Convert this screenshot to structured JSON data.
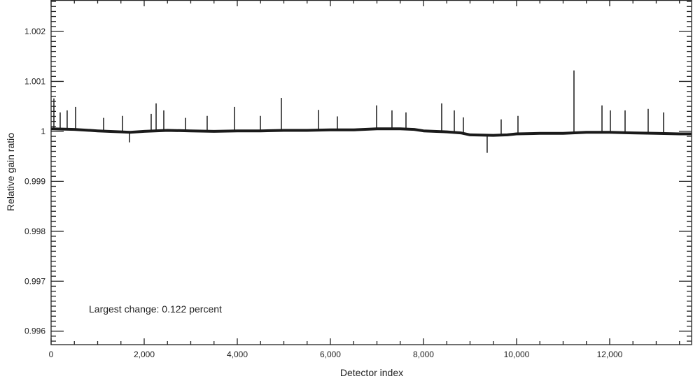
{
  "chart_data": {
    "type": "line",
    "title": "",
    "xlabel": "Detector index",
    "ylabel": "Relative gain ratio",
    "xlim": [
      0,
      13760
    ],
    "ylim": [
      0.99573,
      1.00263
    ],
    "x_ticks": [
      0,
      2000,
      4000,
      6000,
      8000,
      10000,
      12000
    ],
    "x_tick_labels": [
      "0",
      "2,000",
      "4,000",
      "6,000",
      "8,000",
      "10,000",
      "12,000"
    ],
    "x_minor_step": 500,
    "y_ticks": [
      0.996,
      0.997,
      0.998,
      0.999,
      1,
      1.001,
      1.002
    ],
    "y_tick_labels": [
      "0.996",
      "0.997",
      "0.998",
      "0.999",
      "1",
      "1.001",
      "1.002"
    ],
    "y_minor_step": 0.0001,
    "grid": false,
    "annotation": "Largest change: 0.122 percent",
    "line_color": "#1a1a1a",
    "baseline": {
      "x": [
        0,
        500,
        1000,
        1500,
        1700,
        2000,
        2500,
        3000,
        3500,
        4000,
        4500,
        5000,
        5500,
        6000,
        6500,
        7000,
        7500,
        7800,
        8000,
        8500,
        8800,
        9000,
        9500,
        9800,
        10000,
        10500,
        11000,
        11500,
        12000,
        12500,
        13000,
        13500,
        13760
      ],
      "y": [
        1.00005,
        1.00004,
        1.00001,
        0.99999,
        0.99998,
        1.0,
        1.00002,
        1.00001,
        1.0,
        1.00001,
        1.00001,
        1.00002,
        1.00002,
        1.00003,
        1.00003,
        1.00005,
        1.00005,
        1.00004,
        1.00001,
        0.99999,
        0.99997,
        0.99993,
        0.99992,
        0.99993,
        0.99995,
        0.99996,
        0.99996,
        0.99998,
        0.99998,
        0.99997,
        0.99996,
        0.99995,
        0.99995
      ]
    },
    "spikes": {
      "x": [
        60,
        195,
        345,
        526,
        1128,
        1534,
        1684,
        2150,
        2256,
        2421,
        2887,
        3353,
        3940,
        4496,
        4947,
        5744,
        6150,
        6992,
        7323,
        7624,
        8391,
        8662,
        8857,
        9368,
        9669,
        10030,
        11233,
        11835,
        12015,
        12331,
        12827,
        13158
      ],
      "y": [
        1.00066,
        1.00038,
        1.00042,
        1.00049,
        1.00027,
        1.00031,
        0.99978,
        1.00035,
        1.00056,
        1.00042,
        1.00027,
        1.00031,
        1.00049,
        1.00031,
        1.00067,
        1.00043,
        1.0003,
        1.00052,
        1.00042,
        1.00038,
        1.00056,
        1.00042,
        1.00028,
        0.99957,
        1.00024,
        1.00031,
        1.00122,
        1.00052,
        1.00042,
        1.00042,
        1.00045,
        1.00038
      ]
    }
  }
}
